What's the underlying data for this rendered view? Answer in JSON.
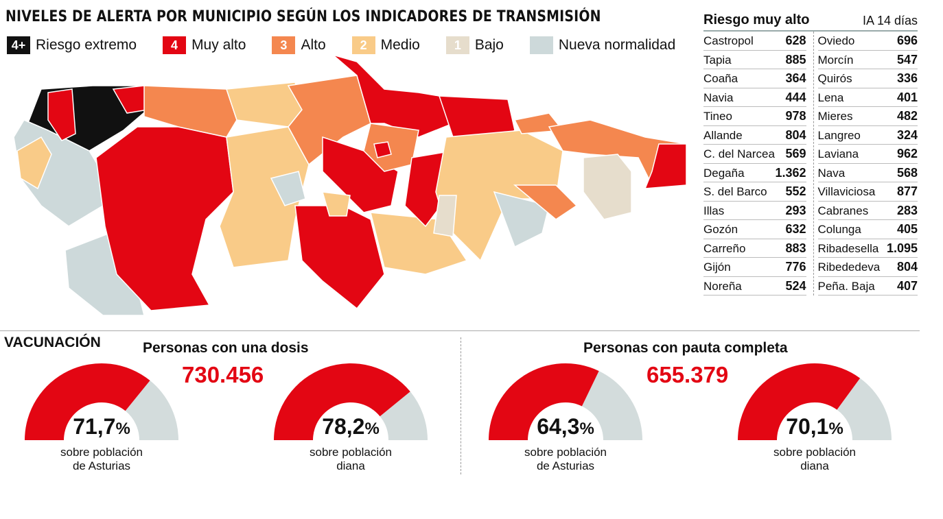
{
  "title": "NIVELES DE ALERTA POR MUNICIPIO SEGÚN LOS INDICADORES DE TRANSMISIÓN",
  "legend": [
    {
      "badge": "4+",
      "label": "Riesgo extremo",
      "color": "#111111"
    },
    {
      "badge": "4",
      "label": "Muy alto",
      "color": "#e30613"
    },
    {
      "badge": "3",
      "label": "Alto",
      "color": "#f4874f"
    },
    {
      "badge": "2",
      "label": "Medio",
      "color": "#f9cb88"
    },
    {
      "badge": "1",
      "label": "Bajo",
      "color": "#e6ddcc"
    },
    {
      "badge": "",
      "label": "Nueva normalidad",
      "color": "#cdd9da"
    }
  ],
  "table": {
    "title": "Riesgo muy alto",
    "unit": "IA 14 días",
    "left": [
      [
        "Castropol",
        "628"
      ],
      [
        "Tapia",
        "885"
      ],
      [
        "Coaña",
        "364"
      ],
      [
        "Navia",
        "444"
      ],
      [
        "Tineo",
        "978"
      ],
      [
        "Allande",
        "804"
      ],
      [
        "C. del Narcea",
        "569"
      ],
      [
        "Degaña",
        "1.362"
      ],
      [
        "S. del Barco",
        "552"
      ],
      [
        "Illas",
        "293"
      ],
      [
        "Gozón",
        "632"
      ],
      [
        "Carreño",
        "883"
      ],
      [
        "Gijón",
        "776"
      ],
      [
        "Noreña",
        "524"
      ]
    ],
    "right": [
      [
        "Oviedo",
        "696"
      ],
      [
        "Morcín",
        "547"
      ],
      [
        "Quirós",
        "336"
      ],
      [
        "Lena",
        "401"
      ],
      [
        "Mieres",
        "482"
      ],
      [
        "Langreo",
        "324"
      ],
      [
        "Laviana",
        "962"
      ],
      [
        "Nava",
        "568"
      ],
      [
        "Villaviciosa",
        "877"
      ],
      [
        "Cabranes",
        "283"
      ],
      [
        "Colunga",
        "405"
      ],
      [
        "Ribadesella",
        "1.095"
      ],
      [
        "Ribededeva",
        "804"
      ],
      [
        "Peña. Baja",
        "407"
      ]
    ]
  },
  "vaccination": {
    "title": "VACUNACIÓN",
    "groups": [
      {
        "title": "Personas con una dosis",
        "total": "730.456",
        "gauges": [
          {
            "value": 71.7,
            "label": "71,7",
            "caption1": "sobre población",
            "caption2": "de Asturias"
          },
          {
            "value": 78.2,
            "label": "78,2",
            "caption1": "sobre población",
            "caption2": "diana"
          }
        ]
      },
      {
        "title": "Personas con pauta completa",
        "total": "655.379",
        "gauges": [
          {
            "value": 64.3,
            "label": "64,3",
            "caption1": "sobre población",
            "caption2": "de Asturias"
          },
          {
            "value": 70.1,
            "label": "70,1",
            "caption1": "sobre población",
            "caption2": "diana"
          }
        ]
      }
    ],
    "pct_sign": "%"
  },
  "colors": {
    "fill": "#e30613",
    "rest": "#d3dcdc"
  }
}
